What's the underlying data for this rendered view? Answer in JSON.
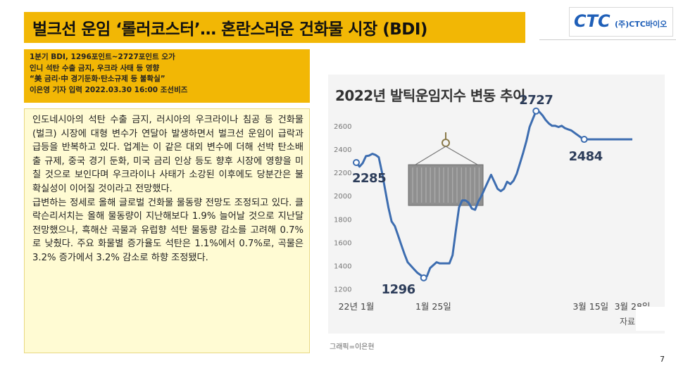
{
  "slide": {
    "title": "벌크선 운임 ‘롤러코스터’… 혼란스러운 건화물 시장 (BDI)",
    "logo_text": "(주)CTC바이오",
    "logo_mark": "CTC",
    "page_number": "7",
    "accent_color": "#f2b705"
  },
  "source": {
    "lines": [
      "1분기 BDI, 1296포인트~2727포인트 오가",
      "인니 석탄 수출 금지, 우크라 사태 등 영향",
      "“美 금리·中 경기둔화·탄소규제 등 불확실”",
      "이은영 기자 입력 2022.03.30 16:00 조선비즈"
    ]
  },
  "body": {
    "paragraphs": [
      "인도네시아의 석탄 수출 금지, 러시아의 우크라이나 침공 등 건화물 (벌크) 시장에 대형 변수가 연달아 발생하면서 벌크선 운임이 급락과 급등을 반복하고 있다. 업계는 이 같은 대외 변수에 더해 선박 탄소배출 규제, 중국 경기 둔화, 미국 금리 인상 등도 향후 시장에 영향을 미칠 것으로 보인다며 우크라이나 사태가 소강된 이후에도 당분간은 불확실성이 이어질 것이라고 전망했다.",
      "급변하는 정세로 올해 글로벌 건화물 물동량 전망도 조정되고 있다. 클락슨리서치는 올해 물동량이 지난해보다 1.9% 늘어날 것으로 지난달 전망했으나, 흑해산 곡물과 유럽향 석탄 물동량 감소를 고려해 0.7%로 낮췄다. 주요 화물별 증가율도 석탄은 1.1%에서 0.7%로, 곡물은 3.2% 증가에서 3.2% 감소로 하향 조정됐다."
    ]
  },
  "chart_data": {
    "type": "line",
    "title": "2022년 발틱운임지수 변동 추이",
    "xlabel": "",
    "ylabel": "",
    "y_ticks": [
      1200,
      1400,
      1600,
      1800,
      2000,
      2200,
      2400,
      2600
    ],
    "ylim": [
      1150,
      2780
    ],
    "x_tick_labels": [
      {
        "day": 1,
        "label": "22년 1월"
      },
      {
        "day": 25,
        "label": "1월 25일"
      },
      {
        "day": 74,
        "label": "3월 15일"
      },
      {
        "day": 87,
        "label": "3월 28일"
      }
    ],
    "series": [
      {
        "name": "BDI",
        "color": "#3d6db0",
        "x": [
          1,
          2,
          3,
          4,
          5,
          6,
          7,
          8,
          9,
          10,
          11,
          12,
          13,
          14,
          15,
          16,
          17,
          18,
          19,
          20,
          21,
          22,
          23,
          24,
          25,
          26,
          27,
          28,
          29,
          30,
          31,
          32,
          33,
          34,
          35,
          36,
          37,
          38,
          39,
          40,
          41,
          42,
          43,
          44,
          45,
          46,
          47,
          48,
          49,
          50,
          51,
          52,
          53,
          54,
          55,
          56,
          57,
          58,
          59,
          60,
          61,
          62,
          63,
          64,
          65,
          66,
          67,
          68,
          69,
          70,
          71,
          72,
          73,
          74,
          75,
          76,
          77,
          78,
          79,
          80,
          81,
          82,
          83,
          84,
          85,
          86,
          87
        ],
        "values": [
          2285,
          2250,
          2280,
          2340,
          2345,
          2360,
          2350,
          2330,
          2200,
          2050,
          1900,
          1780,
          1740,
          1660,
          1580,
          1500,
          1430,
          1400,
          1370,
          1340,
          1320,
          1296,
          1310,
          1380,
          1405,
          1430,
          1420,
          1420,
          1420,
          1420,
          1490,
          1700,
          1900,
          1960,
          1960,
          1940,
          1890,
          1880,
          1950,
          2000,
          2060,
          2120,
          2180,
          2120,
          2060,
          2040,
          2060,
          2120,
          2100,
          2130,
          2190,
          2280,
          2370,
          2470,
          2590,
          2660,
          2727,
          2720,
          2690,
          2650,
          2620,
          2600,
          2600,
          2590,
          2600,
          2580,
          2570,
          2560,
          2540,
          2520,
          2500,
          2484,
          2484,
          2484,
          2484,
          2484,
          2484,
          2484,
          2484,
          2484,
          2484,
          2484,
          2484,
          2484,
          2484,
          2484,
          2484
        ]
      }
    ],
    "annotations": [
      {
        "label": "2285",
        "day": 1,
        "value": 2285
      },
      {
        "label": "1296",
        "day": 22,
        "value": 1296
      },
      {
        "label": "2727",
        "day": 57,
        "value": 2727
      },
      {
        "label": "2484",
        "day": 72,
        "value": 2484
      }
    ],
    "grid": false,
    "background": "#f4f4f4",
    "source_label": "자료:",
    "credit": "그래픽=이은현"
  }
}
